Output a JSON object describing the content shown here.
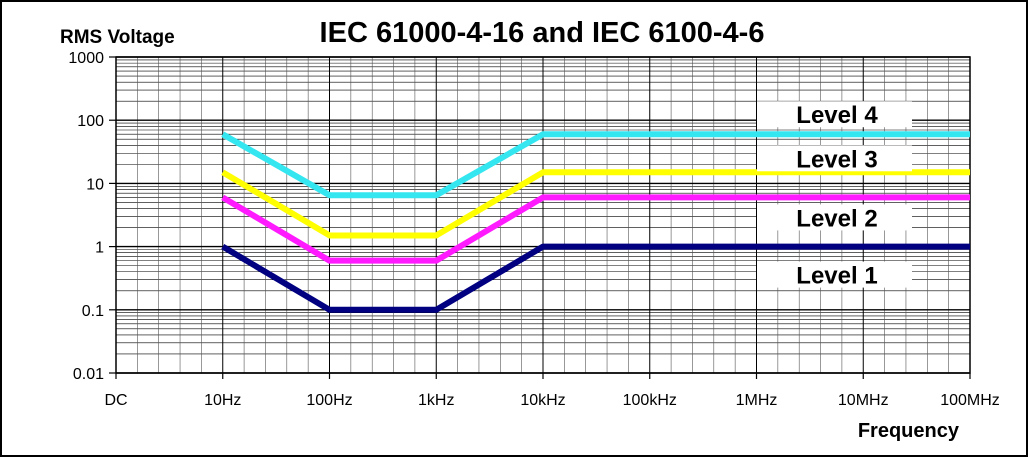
{
  "chart_data": {
    "type": "line",
    "title": "IEC  61000-4-16  and IEC 6100-4-6",
    "ylabel": "RMS Voltage",
    "xlabel": "Frequency",
    "y_scale": "log",
    "ylim": [
      0.01,
      1000
    ],
    "y_ticks": [
      "1000",
      "100",
      "10",
      "1",
      "0.1",
      "0.01"
    ],
    "categories": [
      "DC",
      "10Hz",
      "100Hz",
      "1kHz",
      "10kHz",
      "100kHz",
      "1MHz",
      "10MHz",
      "100MHz"
    ],
    "grid": true,
    "series": [
      {
        "name": "Level 4",
        "color": "#33e6f0",
        "x": [
          "10Hz",
          "100Hz",
          "1kHz",
          "10kHz",
          "100MHz"
        ],
        "values": [
          60,
          6.5,
          6.5,
          60,
          60
        ]
      },
      {
        "name": "Level 3",
        "color": "#ffff00",
        "x": [
          "10Hz",
          "100Hz",
          "1kHz",
          "10kHz",
          "100MHz"
        ],
        "values": [
          15,
          1.5,
          1.5,
          15,
          15
        ]
      },
      {
        "name": "Level 2",
        "color": "#ff1aff",
        "x": [
          "10Hz",
          "100Hz",
          "1kHz",
          "10kHz",
          "100MHz"
        ],
        "values": [
          6,
          0.6,
          0.6,
          6,
          6
        ]
      },
      {
        "name": "Level 1",
        "color": "#000080",
        "x": [
          "10Hz",
          "100Hz",
          "1kHz",
          "10kHz",
          "100MHz"
        ],
        "values": [
          1,
          0.1,
          0.1,
          1,
          1
        ]
      }
    ]
  }
}
